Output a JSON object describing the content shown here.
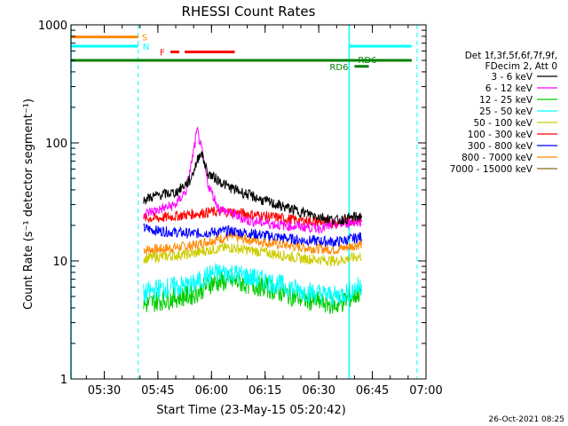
{
  "chart_data": {
    "type": "line",
    "title": "RHESSI Count Rates",
    "xlabel": "Start Time (23-May-15 05:20:42)",
    "ylabel": "Count Rate (s⁻¹ detector segment⁻¹)",
    "y_scale": "log",
    "ylim": [
      1,
      1000
    ],
    "xlim": [
      "05:20:42",
      "07:00:00"
    ],
    "x_ticks": [
      "05:30",
      "05:45",
      "06:00",
      "06:15",
      "06:30",
      "06:45",
      "07:00"
    ],
    "y_ticks": [
      "1",
      "10",
      "100",
      "1000"
    ],
    "timestamp": "26-Oct-2021 08:25",
    "legend": {
      "placement": "right",
      "header": [
        "Det 1f,3f,5f,6f,7f,9f,",
        "FDecim 2, Att 0"
      ],
      "entries": [
        {
          "label": "3 - 6 keV",
          "color": "#000000"
        },
        {
          "label": "6 - 12 keV",
          "color": "#ff00ff"
        },
        {
          "label": "12 - 25 keV",
          "color": "#00cc00"
        },
        {
          "label": "25 - 50 keV",
          "color": "#00ffff"
        },
        {
          "label": "50 - 100 keV",
          "color": "#cccc00"
        },
        {
          "label": "100 - 300 keV",
          "color": "#ff0000"
        },
        {
          "label": "300 - 800 keV",
          "color": "#0000ff"
        },
        {
          "label": "800 - 7000 keV",
          "color": "#ff8800"
        },
        {
          "label": "7000 - 15000 keV",
          "color": "#8b6914"
        }
      ]
    },
    "series": [
      {
        "name": "3 - 6 keV",
        "color": "#000000",
        "x": [
          "05:41",
          "05:45",
          "05:50",
          "05:54",
          "05:56",
          "05:57",
          "05:59",
          "06:05",
          "06:15",
          "06:25",
          "06:35",
          "06:42"
        ],
        "values": [
          33,
          36,
          38,
          48,
          70,
          85,
          55,
          42,
          32,
          26,
          22,
          24
        ]
      },
      {
        "name": "6 - 12 keV",
        "color": "#ff00ff",
        "x": [
          "05:41",
          "05:45",
          "05:50",
          "05:53",
          "05:55",
          "05:56",
          "05:57",
          "05:59",
          "06:02",
          "06:10",
          "06:20",
          "06:30",
          "06:42"
        ],
        "values": [
          25,
          27,
          30,
          40,
          85,
          128,
          95,
          45,
          28,
          22,
          20,
          19,
          22
        ]
      },
      {
        "name": "12 - 25 keV",
        "color": "#00cc00",
        "x": [
          "05:41",
          "05:45",
          "05:55",
          "06:00",
          "06:05",
          "06:15",
          "06:25",
          "06:35",
          "06:42"
        ],
        "values": [
          4.2,
          4.6,
          5.2,
          6.5,
          6.8,
          6.0,
          4.8,
          4.2,
          5.5
        ]
      },
      {
        "name": "25 - 50 keV",
        "color": "#00ffff",
        "x": [
          "05:41",
          "05:45",
          "05:55",
          "06:00",
          "06:05",
          "06:15",
          "06:25",
          "06:35",
          "06:42"
        ],
        "values": [
          5.2,
          5.8,
          6.3,
          7.8,
          8.0,
          6.8,
          5.6,
          5.0,
          6.2
        ]
      },
      {
        "name": "50 - 100 keV",
        "color": "#cccc00",
        "x": [
          "05:41",
          "05:45",
          "05:55",
          "06:00",
          "06:05",
          "06:15",
          "06:25",
          "06:35",
          "06:42"
        ],
        "values": [
          10.5,
          10.8,
          11.5,
          12.5,
          13.0,
          11.8,
          10.5,
          10.0,
          11.0
        ]
      },
      {
        "name": "100 - 300 keV",
        "color": "#ff0000",
        "x": [
          "05:41",
          "05:45",
          "05:50",
          "05:55",
          "06:00",
          "06:05",
          "06:10",
          "06:15",
          "06:25",
          "06:35",
          "06:42"
        ],
        "values": [
          23,
          23,
          24,
          25,
          26,
          26,
          25,
          24,
          22,
          21,
          23
        ]
      },
      {
        "name": "300 - 800 keV",
        "color": "#0000ff",
        "x": [
          "05:41",
          "05:45",
          "05:55",
          "06:00",
          "06:05",
          "06:15",
          "06:25",
          "06:35",
          "06:42"
        ],
        "values": [
          19,
          18,
          17,
          17.5,
          18,
          16.5,
          15,
          14.5,
          16
        ]
      },
      {
        "name": "800 - 7000 keV",
        "color": "#ff8800",
        "x": [
          "05:41",
          "05:45",
          "05:55",
          "06:00",
          "06:05",
          "06:15",
          "06:25",
          "06:35",
          "06:42"
        ],
        "values": [
          12.5,
          12.5,
          13.5,
          15,
          16,
          14.5,
          13,
          12.5,
          14
        ]
      }
    ],
    "flags": [
      {
        "label": "S",
        "color": "#ff8800",
        "x_start": "05:20:42",
        "x_end": "05:39:30",
        "level": 790
      },
      {
        "label": "N",
        "color": "#00ffff",
        "x_start": "05:20:42",
        "x_end": "05:39:30",
        "level": 660
      },
      {
        "label": "F",
        "color": "#ff0000",
        "segments": [
          [
            "05:48:30",
            "05:51:00"
          ],
          [
            "05:52:30",
            "06:06:30"
          ]
        ],
        "level": 590
      },
      {
        "label": "RD6",
        "color": "#008000",
        "x_start": "06:40:00",
        "x_end": "06:44:00",
        "level": 445
      },
      {
        "label": "RD6",
        "color": "#008000",
        "x_start": "05:20:42",
        "x_end": "06:56:00",
        "level": 500
      }
    ],
    "night_lines": [
      "05:20:42",
      "06:38:30"
    ],
    "saa_lines": [
      "05:39:30",
      "06:57:30"
    ],
    "night_bars": [
      {
        "x_start": "06:38:30",
        "x_end": "06:56:00",
        "level": 660
      }
    ]
  }
}
